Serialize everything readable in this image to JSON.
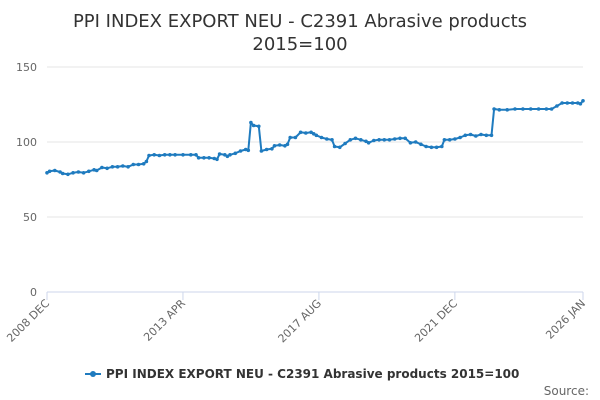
{
  "chart_data": {
    "type": "line",
    "title_lines": [
      "PPI INDEX EXPORT NEU - C2391 Abrasive products",
      "2015=100"
    ],
    "ylim": [
      0,
      150
    ],
    "yticks": [
      0,
      50,
      100,
      150
    ],
    "xlim": [
      "2008-12",
      "2026-01"
    ],
    "xticks": [
      {
        "date": "2008-12",
        "label": "2008 DEC"
      },
      {
        "date": "2013-04",
        "label": "2013 APR"
      },
      {
        "date": "2017-08",
        "label": "2017 AUG"
      },
      {
        "date": "2021-12",
        "label": "2021 DEC"
      },
      {
        "date": "2026-01",
        "label": "2026 JAN"
      }
    ],
    "grid": true,
    "legend_position": "bottom-center",
    "series": [
      {
        "name": "PPI INDEX EXPORT NEU - C2391 Abrasive products 2015=100",
        "color": "#1f7bbf",
        "points": [
          [
            "2008-12",
            79.5
          ],
          [
            "2009-01",
            80.5
          ],
          [
            "2009-03",
            81
          ],
          [
            "2009-05",
            80
          ],
          [
            "2009-06",
            79
          ],
          [
            "2009-08",
            78.5
          ],
          [
            "2009-10",
            79.5
          ],
          [
            "2009-12",
            80
          ],
          [
            "2010-02",
            79.5
          ],
          [
            "2010-04",
            80.5
          ],
          [
            "2010-06",
            81.5
          ],
          [
            "2010-07",
            81
          ],
          [
            "2010-09",
            83
          ],
          [
            "2010-11",
            82.5
          ],
          [
            "2011-01",
            83.5
          ],
          [
            "2011-03",
            83.5
          ],
          [
            "2011-05",
            84
          ],
          [
            "2011-07",
            83.5
          ],
          [
            "2011-09",
            85
          ],
          [
            "2011-11",
            85
          ],
          [
            "2012-01",
            85.5
          ],
          [
            "2012-02",
            87
          ],
          [
            "2012-03",
            91
          ],
          [
            "2012-05",
            91.5
          ],
          [
            "2012-07",
            91
          ],
          [
            "2012-09",
            91.5
          ],
          [
            "2012-11",
            91.5
          ],
          [
            "2013-01",
            91.5
          ],
          [
            "2013-04",
            91.5
          ],
          [
            "2013-07",
            91.5
          ],
          [
            "2013-09",
            91.5
          ],
          [
            "2013-10",
            89.5
          ],
          [
            "2013-12",
            89.5
          ],
          [
            "2014-02",
            89.5
          ],
          [
            "2014-04",
            89
          ],
          [
            "2014-05",
            88.5
          ],
          [
            "2014-06",
            92
          ],
          [
            "2014-08",
            91.5
          ],
          [
            "2014-09",
            90.5
          ],
          [
            "2014-10",
            91.5
          ],
          [
            "2014-12",
            92.5
          ],
          [
            "2015-02",
            94
          ],
          [
            "2015-04",
            95
          ],
          [
            "2015-05",
            94.5
          ],
          [
            "2015-06",
            113
          ],
          [
            "2015-07",
            111
          ],
          [
            "2015-09",
            110.5
          ],
          [
            "2015-10",
            94
          ],
          [
            "2015-12",
            95
          ],
          [
            "2016-02",
            95.5
          ],
          [
            "2016-03",
            97.5
          ],
          [
            "2016-05",
            98
          ],
          [
            "2016-07",
            97.5
          ],
          [
            "2016-08",
            98.5
          ],
          [
            "2016-09",
            103
          ],
          [
            "2016-11",
            103
          ],
          [
            "2017-01",
            106.5
          ],
          [
            "2017-03",
            106
          ],
          [
            "2017-05",
            106.5
          ],
          [
            "2017-06",
            105.5
          ],
          [
            "2017-07",
            104.5
          ],
          [
            "2017-09",
            103
          ],
          [
            "2017-11",
            102
          ],
          [
            "2018-01",
            101.5
          ],
          [
            "2018-02",
            97
          ],
          [
            "2018-04",
            96.5
          ],
          [
            "2018-06",
            99
          ],
          [
            "2018-08",
            101.5
          ],
          [
            "2018-10",
            102.5
          ],
          [
            "2018-12",
            101.5
          ],
          [
            "2019-02",
            100.5
          ],
          [
            "2019-03",
            99.5
          ],
          [
            "2019-05",
            101
          ],
          [
            "2019-07",
            101.5
          ],
          [
            "2019-09",
            101.5
          ],
          [
            "2019-11",
            101.5
          ],
          [
            "2020-01",
            102
          ],
          [
            "2020-03",
            102.5
          ],
          [
            "2020-05",
            102.5
          ],
          [
            "2020-07",
            99.5
          ],
          [
            "2020-09",
            100
          ],
          [
            "2020-11",
            98.5
          ],
          [
            "2021-01",
            97
          ],
          [
            "2021-03",
            96.5
          ],
          [
            "2021-05",
            96.5
          ],
          [
            "2021-07",
            97
          ],
          [
            "2021-08",
            101.5
          ],
          [
            "2021-10",
            101.5
          ],
          [
            "2021-12",
            102
          ],
          [
            "2022-02",
            103
          ],
          [
            "2022-04",
            104.5
          ],
          [
            "2022-06",
            105
          ],
          [
            "2022-08",
            104
          ],
          [
            "2022-10",
            105
          ],
          [
            "2022-12",
            104.5
          ],
          [
            "2023-02",
            104.5
          ],
          [
            "2023-03",
            122
          ],
          [
            "2023-05",
            121.5
          ],
          [
            "2023-08",
            121.5
          ],
          [
            "2023-11",
            122
          ],
          [
            "2024-02",
            122
          ],
          [
            "2024-05",
            122
          ],
          [
            "2024-08",
            122
          ],
          [
            "2024-11",
            122
          ],
          [
            "2025-01",
            122
          ],
          [
            "2025-03",
            124
          ],
          [
            "2025-05",
            126
          ],
          [
            "2025-07",
            126
          ],
          [
            "2025-09",
            126
          ],
          [
            "2025-11",
            126
          ],
          [
            "2025-12",
            125.5
          ],
          [
            "2026-01",
            127.5
          ]
        ]
      }
    ],
    "source_label": "Source:"
  }
}
